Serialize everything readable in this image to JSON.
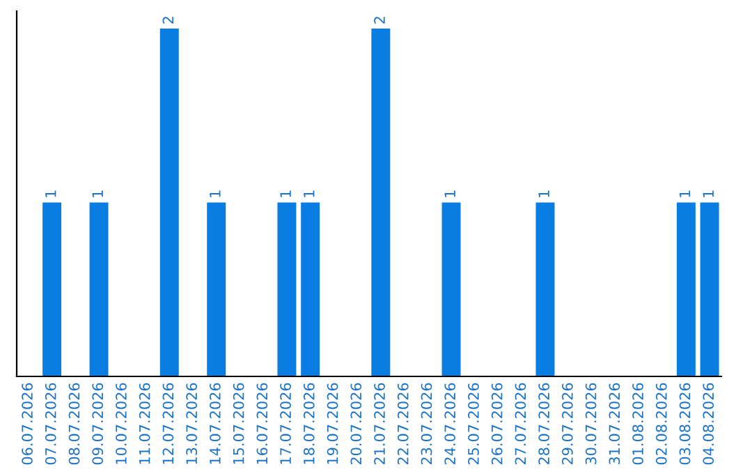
{
  "chart_data": {
    "type": "bar",
    "categories": [
      "06.07.2026",
      "07.07.2026",
      "08.07.2026",
      "09.07.2026",
      "10.07.2026",
      "11.07.2026",
      "12.07.2026",
      "13.07.2026",
      "14.07.2026",
      "15.07.2026",
      "16.07.2026",
      "17.07.2026",
      "18.07.2026",
      "19.07.2026",
      "20.07.2026",
      "21.07.2026",
      "22.07.2026",
      "23.07.2026",
      "24.07.2026",
      "25.07.2026",
      "26.07.2026",
      "27.07.2026",
      "28.07.2026",
      "29.07.2026",
      "30.07.2026",
      "31.07.2026",
      "01.08.2026",
      "02.08.2026",
      "03.08.2026",
      "04.08.2026"
    ],
    "values": [
      0,
      1,
      0,
      1,
      0,
      0,
      2,
      0,
      1,
      0,
      0,
      1,
      1,
      0,
      0,
      2,
      0,
      0,
      1,
      0,
      0,
      0,
      1,
      0,
      0,
      0,
      0,
      0,
      1,
      1
    ],
    "value_labels": [
      null,
      "1",
      null,
      "1",
      null,
      null,
      "2",
      null,
      "1",
      null,
      null,
      "1",
      "1",
      null,
      null,
      "2",
      null,
      null,
      "1",
      null,
      null,
      null,
      "1",
      null,
      null,
      null,
      null,
      null,
      "1",
      "1"
    ],
    "color": "#0a7de3",
    "ylim": [
      0,
      2.1
    ],
    "tick_labels": "x",
    "grid": false,
    "legend": false
  }
}
